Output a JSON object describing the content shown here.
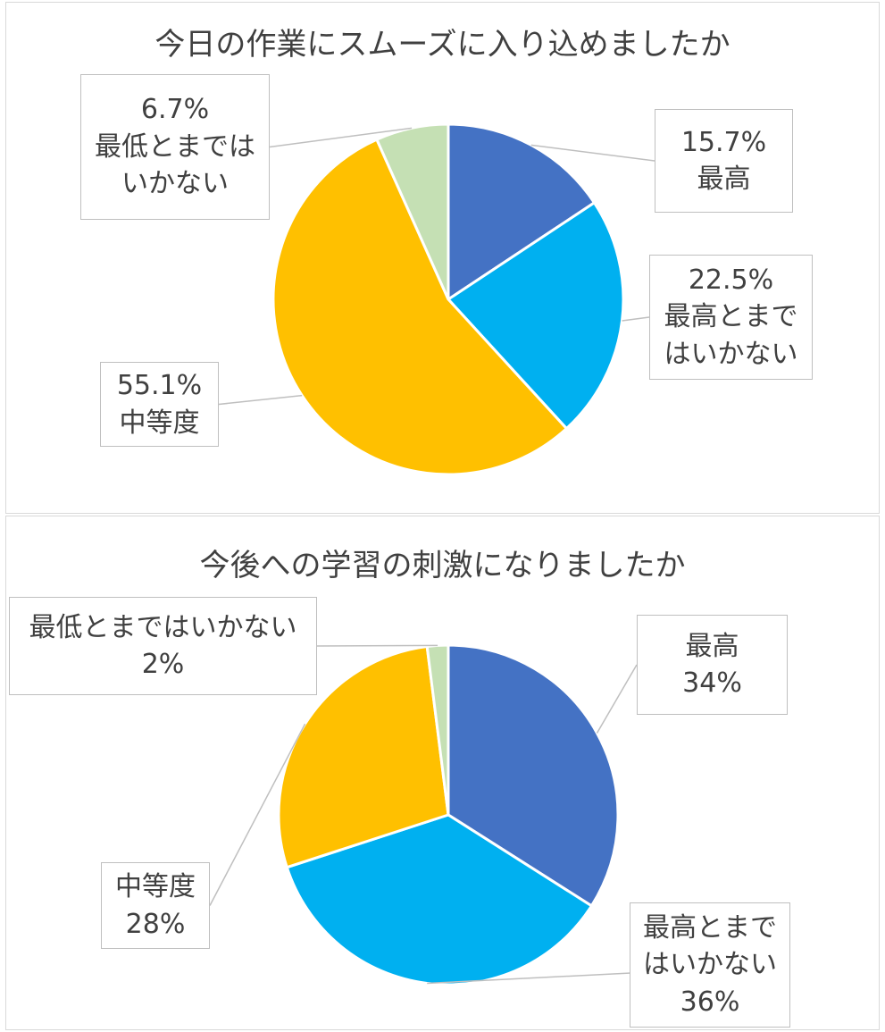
{
  "chart_data": [
    {
      "type": "pie",
      "title": "今日の作業にスムーズに入り込めましたか",
      "categories": [
        "最高",
        "最高とまではいかない",
        "中等度",
        "最低とまではいかない"
      ],
      "values": [
        15.7,
        22.5,
        55.1,
        6.7
      ],
      "value_labels": [
        "15.7%",
        "22.5%",
        "55.1%",
        "6.7%"
      ],
      "colors": [
        "#4472c4",
        "#00b0f0",
        "#ffc000",
        "#c5e0b4"
      ]
    },
    {
      "type": "pie",
      "title": "今後への学習の刺激になりましたか",
      "categories": [
        "最高",
        "最高とまではいかない",
        "中等度",
        "最低とまではいかない"
      ],
      "values": [
        34,
        36,
        28,
        2
      ],
      "value_labels": [
        "34%",
        "36%",
        "28%",
        "2%"
      ],
      "colors": [
        "#4472c4",
        "#00b0f0",
        "#ffc000",
        "#c5e0b4"
      ]
    }
  ]
}
